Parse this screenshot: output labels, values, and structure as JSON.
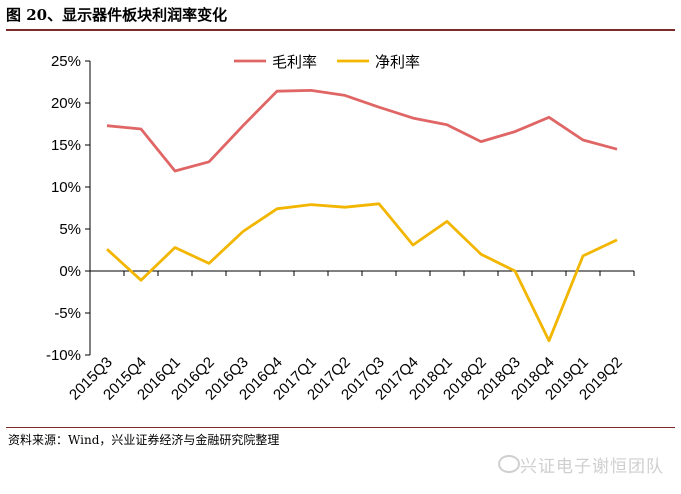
{
  "header": {
    "title": "图 20、显示器件板块利润率变化"
  },
  "footer": {
    "source": "资料来源：Wind，兴业证券经济与金融研究院整理",
    "watermark": "兴证电子谢恒团队"
  },
  "chart_data": {
    "type": "line",
    "categories": [
      "2015Q3",
      "2015Q4",
      "2016Q1",
      "2016Q2",
      "2016Q3",
      "2016Q4",
      "2017Q1",
      "2017Q2",
      "2017Q3",
      "2017Q4",
      "2018Q1",
      "2018Q2",
      "2018Q3",
      "2018Q4",
      "2019Q1",
      "2019Q2"
    ],
    "series": [
      {
        "name": "毛利率",
        "color": "#e06666",
        "values": [
          17.3,
          16.9,
          11.9,
          13.0,
          17.3,
          21.4,
          21.5,
          20.9,
          19.5,
          18.2,
          17.4,
          15.4,
          16.6,
          18.3,
          15.6,
          14.5
        ]
      },
      {
        "name": "净利率",
        "color": "#f2b600",
        "values": [
          2.6,
          -1.1,
          2.8,
          0.9,
          4.7,
          7.4,
          7.9,
          7.6,
          8.0,
          3.1,
          5.9,
          2.0,
          0.0,
          -8.3,
          1.8,
          3.7
        ]
      }
    ],
    "yticks": [
      "25%",
      "20%",
      "15%",
      "10%",
      "5%",
      "0%",
      "-5%",
      "-10%"
    ],
    "ylim": [
      -10,
      25
    ],
    "legend_position": "top",
    "grid": false
  }
}
